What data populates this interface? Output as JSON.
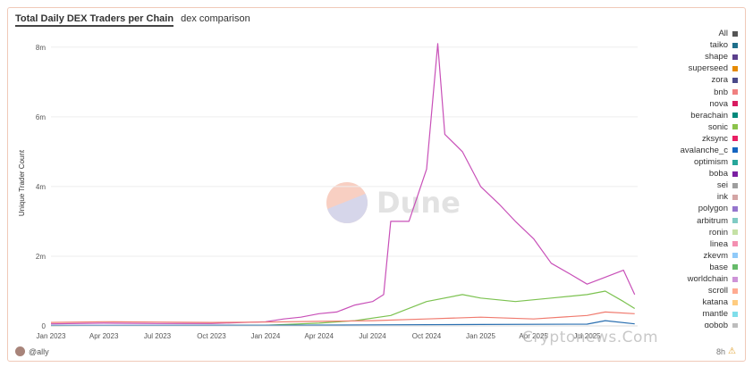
{
  "tabs": [
    {
      "label": "Total Daily DEX Traders per Chain",
      "active": true
    },
    {
      "label": "dex comparison",
      "active": false
    }
  ],
  "brand": {
    "watermark": "Dune",
    "overlay": "Cryptonews.Com"
  },
  "footer": {
    "user": "@ally",
    "right_text": "8h"
  },
  "chart_data": {
    "type": "line",
    "title": "",
    "ylabel": "Unique Trader Count",
    "xlabel": "",
    "ylim": [
      0,
      8200000
    ],
    "yticks": [
      0,
      2000000,
      4000000,
      6000000,
      8000000
    ],
    "ytick_labels": [
      "0",
      "2m",
      "4m",
      "6m",
      "8m"
    ],
    "xlim": [
      "2023-01-01",
      "2025-09-25"
    ],
    "xticks": [
      "2023-01-01",
      "2023-04-01",
      "2023-07-01",
      "2023-10-01",
      "2024-01-01",
      "2024-04-01",
      "2024-07-01",
      "2024-10-01",
      "2025-01-01",
      "2025-04-01",
      "2025-07-01"
    ],
    "xtick_labels": [
      "Jan 2023",
      "Apr 2023",
      "Jul 2023",
      "Oct 2023",
      "Jan 2024",
      "Apr 2024",
      "Jul 2024",
      "Oct 2024",
      "Jan 2025",
      "Apr 2025",
      "Jul 2025"
    ],
    "grid": true,
    "legend_position": "right",
    "legend": [
      {
        "name": "All",
        "color": "#555555"
      },
      {
        "name": "taiko",
        "color": "#1f6f8b"
      },
      {
        "name": "shape",
        "color": "#5b3f8c"
      },
      {
        "name": "superseed",
        "color": "#e68a00"
      },
      {
        "name": "zora",
        "color": "#4a4a8a"
      },
      {
        "name": "bnb",
        "color": "#f08080"
      },
      {
        "name": "nova",
        "color": "#d81b60"
      },
      {
        "name": "berachain",
        "color": "#00897b"
      },
      {
        "name": "sonic",
        "color": "#8bc34a"
      },
      {
        "name": "zksync",
        "color": "#e91e63"
      },
      {
        "name": "avalanche_c",
        "color": "#1565c0"
      },
      {
        "name": "optimism",
        "color": "#26a69a"
      },
      {
        "name": "boba",
        "color": "#7b1fa2"
      },
      {
        "name": "sei",
        "color": "#9e9e9e"
      },
      {
        "name": "ink",
        "color": "#d4a5a5"
      },
      {
        "name": "polygon",
        "color": "#9575cd"
      },
      {
        "name": "arbitrum",
        "color": "#80cbc4"
      },
      {
        "name": "ronin",
        "color": "#c5e1a5"
      },
      {
        "name": "linea",
        "color": "#f48fb1"
      },
      {
        "name": "zkevm",
        "color": "#90caf9"
      },
      {
        "name": "base",
        "color": "#66bb6a"
      },
      {
        "name": "worldchain",
        "color": "#ce93d8"
      },
      {
        "name": "scroll",
        "color": "#ffab91"
      },
      {
        "name": "katana",
        "color": "#ffcc80"
      },
      {
        "name": "mantle",
        "color": "#80deea"
      },
      {
        "name": "gobob",
        "color": "#bdbdbd"
      }
    ],
    "series": [
      {
        "color": "#c850b8",
        "points": [
          [
            "2023-01-01",
            60000
          ],
          [
            "2023-04-01",
            80000
          ],
          [
            "2023-07-01",
            70000
          ],
          [
            "2023-10-01",
            70000
          ],
          [
            "2024-01-01",
            120000
          ],
          [
            "2024-02-01",
            200000
          ],
          [
            "2024-03-01",
            250000
          ],
          [
            "2024-04-01",
            350000
          ],
          [
            "2024-05-01",
            400000
          ],
          [
            "2024-06-01",
            600000
          ],
          [
            "2024-07-01",
            700000
          ],
          [
            "2024-07-20",
            900000
          ],
          [
            "2024-08-01",
            3000000
          ],
          [
            "2024-09-01",
            3000000
          ],
          [
            "2024-10-01",
            4500000
          ],
          [
            "2024-10-20",
            8100000
          ],
          [
            "2024-11-01",
            5500000
          ],
          [
            "2024-12-01",
            5000000
          ],
          [
            "2025-01-01",
            4000000
          ],
          [
            "2025-02-01",
            3500000
          ],
          [
            "2025-03-01",
            3000000
          ],
          [
            "2025-04-01",
            2500000
          ],
          [
            "2025-05-01",
            1800000
          ],
          [
            "2025-06-01",
            1500000
          ],
          [
            "2025-07-01",
            1200000
          ],
          [
            "2025-08-01",
            1400000
          ],
          [
            "2025-09-01",
            1600000
          ],
          [
            "2025-09-20",
            900000
          ]
        ]
      },
      {
        "color": "#7cc250",
        "points": [
          [
            "2023-01-01",
            0
          ],
          [
            "2024-01-01",
            20000
          ],
          [
            "2024-04-01",
            80000
          ],
          [
            "2024-06-01",
            150000
          ],
          [
            "2024-08-01",
            300000
          ],
          [
            "2024-10-01",
            700000
          ],
          [
            "2024-12-01",
            900000
          ],
          [
            "2025-01-01",
            800000
          ],
          [
            "2025-03-01",
            700000
          ],
          [
            "2025-05-01",
            800000
          ],
          [
            "2025-07-01",
            900000
          ],
          [
            "2025-08-01",
            1000000
          ],
          [
            "2025-09-01",
            700000
          ],
          [
            "2025-09-20",
            500000
          ]
        ]
      },
      {
        "color": "#f07a6e",
        "points": [
          [
            "2023-01-01",
            100000
          ],
          [
            "2023-04-01",
            120000
          ],
          [
            "2023-07-01",
            110000
          ],
          [
            "2023-10-01",
            100000
          ],
          [
            "2024-01-01",
            110000
          ],
          [
            "2024-04-01",
            130000
          ],
          [
            "2024-07-01",
            150000
          ],
          [
            "2024-10-01",
            200000
          ],
          [
            "2025-01-01",
            250000
          ],
          [
            "2025-04-01",
            200000
          ],
          [
            "2025-07-01",
            300000
          ],
          [
            "2025-08-01",
            400000
          ],
          [
            "2025-09-20",
            350000
          ]
        ]
      },
      {
        "color": "#2a6fb0",
        "points": [
          [
            "2023-01-01",
            15000
          ],
          [
            "2024-01-01",
            20000
          ],
          [
            "2024-07-01",
            30000
          ],
          [
            "2025-01-01",
            40000
          ],
          [
            "2025-07-01",
            50000
          ],
          [
            "2025-08-01",
            150000
          ],
          [
            "2025-09-20",
            60000
          ]
        ]
      }
    ]
  }
}
